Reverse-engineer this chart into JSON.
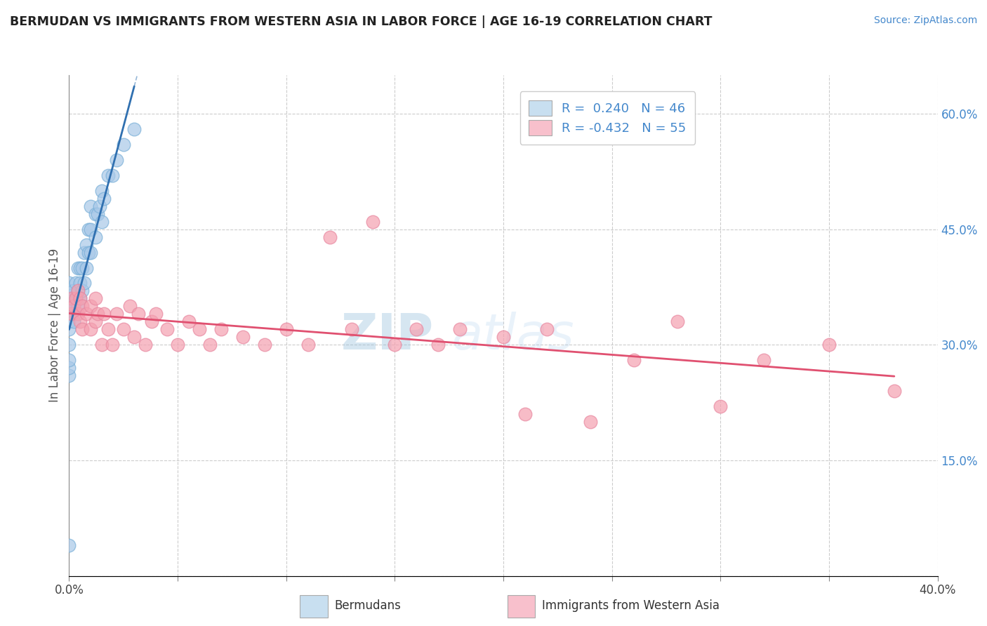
{
  "title": "BERMUDAN VS IMMIGRANTS FROM WESTERN ASIA IN LABOR FORCE | AGE 16-19 CORRELATION CHART",
  "source": "Source: ZipAtlas.com",
  "ylabel": "In Labor Force | Age 16-19",
  "xlim": [
    0.0,
    0.4
  ],
  "ylim": [
    0.0,
    0.65
  ],
  "x_ticks": [
    0.0,
    0.05,
    0.1,
    0.15,
    0.2,
    0.25,
    0.3,
    0.35,
    0.4
  ],
  "y_ticks": [
    0.0,
    0.15,
    0.3,
    0.45,
    0.6
  ],
  "blue_color": "#a8c8e8",
  "pink_color": "#f4a0b0",
  "line_blue": "#3070b0",
  "line_pink": "#e05070",
  "watermark_zip": "ZIP",
  "watermark_atlas": "atlas",
  "bermudans_R": 0.24,
  "bermudans_N": 46,
  "immigrants_R": -0.432,
  "immigrants_N": 55,
  "bermudans_x": [
    0.0,
    0.0,
    0.0,
    0.0,
    0.0,
    0.0,
    0.0,
    0.0,
    0.0,
    0.0,
    0.0,
    0.0,
    0.002,
    0.002,
    0.002,
    0.003,
    0.003,
    0.004,
    0.004,
    0.004,
    0.005,
    0.005,
    0.005,
    0.006,
    0.006,
    0.007,
    0.007,
    0.008,
    0.008,
    0.009,
    0.009,
    0.01,
    0.01,
    0.01,
    0.012,
    0.012,
    0.013,
    0.014,
    0.015,
    0.015,
    0.016,
    0.018,
    0.02,
    0.022,
    0.025,
    0.03
  ],
  "bermudans_y": [
    0.04,
    0.26,
    0.27,
    0.28,
    0.3,
    0.32,
    0.33,
    0.34,
    0.35,
    0.36,
    0.37,
    0.38,
    0.33,
    0.35,
    0.37,
    0.36,
    0.38,
    0.35,
    0.37,
    0.4,
    0.36,
    0.38,
    0.4,
    0.37,
    0.4,
    0.38,
    0.42,
    0.4,
    0.43,
    0.42,
    0.45,
    0.42,
    0.45,
    0.48,
    0.44,
    0.47,
    0.47,
    0.48,
    0.46,
    0.5,
    0.49,
    0.52,
    0.52,
    0.54,
    0.56,
    0.58
  ],
  "immigrants_x": [
    0.001,
    0.001,
    0.002,
    0.003,
    0.004,
    0.004,
    0.005,
    0.005,
    0.006,
    0.006,
    0.008,
    0.01,
    0.01,
    0.012,
    0.012,
    0.013,
    0.015,
    0.016,
    0.018,
    0.02,
    0.022,
    0.025,
    0.028,
    0.03,
    0.032,
    0.035,
    0.038,
    0.04,
    0.045,
    0.05,
    0.055,
    0.06,
    0.065,
    0.07,
    0.08,
    0.09,
    0.1,
    0.11,
    0.12,
    0.13,
    0.14,
    0.15,
    0.16,
    0.17,
    0.18,
    0.2,
    0.21,
    0.22,
    0.24,
    0.26,
    0.28,
    0.3,
    0.32,
    0.35,
    0.38
  ],
  "immigrants_y": [
    0.34,
    0.36,
    0.35,
    0.36,
    0.34,
    0.37,
    0.33,
    0.36,
    0.32,
    0.35,
    0.34,
    0.32,
    0.35,
    0.33,
    0.36,
    0.34,
    0.3,
    0.34,
    0.32,
    0.3,
    0.34,
    0.32,
    0.35,
    0.31,
    0.34,
    0.3,
    0.33,
    0.34,
    0.32,
    0.3,
    0.33,
    0.32,
    0.3,
    0.32,
    0.31,
    0.3,
    0.32,
    0.3,
    0.44,
    0.32,
    0.46,
    0.3,
    0.32,
    0.3,
    0.32,
    0.31,
    0.21,
    0.32,
    0.2,
    0.28,
    0.33,
    0.22,
    0.28,
    0.3,
    0.24
  ]
}
